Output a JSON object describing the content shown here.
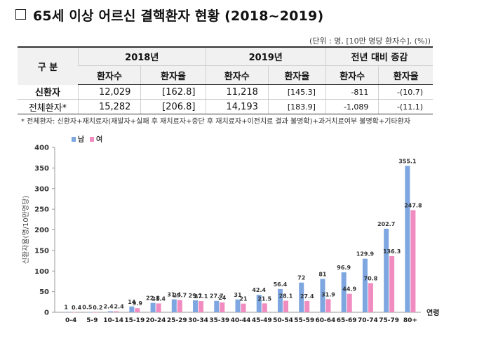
{
  "title": "65세 이상 어르신 결핵환자 현황 (2018~2019)",
  "unit_note": "(단위 : 명, [10만 명당 환자수], (%))",
  "table": {
    "header_group": "구 분",
    "years": [
      "2018년",
      "2019년",
      "전년 대비 증감"
    ],
    "subheaders": [
      "환자수",
      "환자율",
      "환자수",
      "환자율",
      "환자수",
      "환자율"
    ],
    "rows": [
      {
        "label": "신환자",
        "values": [
          "12,029",
          "[162.8]",
          "11,218",
          "[145.3]",
          "-811",
          "-(10.7)"
        ]
      },
      {
        "label": "전체환자*",
        "values": [
          "15,282",
          "[206.8]",
          "14,193",
          "[183.9]",
          "-1,089",
          "-(11.1)"
        ]
      }
    ]
  },
  "footnote": "* 전체환자: 신환자+재치료자(재발자+실패 후 재치료자+중단 후 재치료자+이전치료 결과 불명확)+과거치료여부 불명확+기타환자",
  "colors": {
    "male": "#7ea6e0",
    "female": "#f08cbf",
    "axis": "#9a9a9a",
    "header_bg": "#f1f1f1"
  },
  "chart_data": {
    "type": "bar",
    "categories": [
      "0-4",
      "5-9",
      "10-14",
      "15-19",
      "20-24",
      "25-29",
      "30-34",
      "35-39",
      "40-44",
      "45-49",
      "50-54",
      "55-59",
      "60-64",
      "65-69",
      "70-74",
      "75-79",
      "80+"
    ],
    "x_unit_label": "연령",
    "ylabel": "신환자율(명/10만명당)",
    "ylim": [
      0,
      400
    ],
    "yticks": [
      0,
      50,
      100,
      150,
      200,
      250,
      300,
      350,
      400
    ],
    "legend": "top-left",
    "series": [
      {
        "name": "남",
        "color": "#7ea6e0",
        "values": [
          1,
          0.5,
          2.4,
          14,
          22.8,
          31.4,
          29.1,
          27.7,
          31,
          42.4,
          56.4,
          72,
          81,
          96.9,
          129.9,
          202.7,
          355.1
        ]
      },
      {
        "name": "여",
        "color": "#f08cbf",
        "values": [
          0.4,
          0.2,
          2.4,
          9.9,
          21.4,
          29.7,
          27.1,
          24,
          21,
          21.5,
          28.1,
          27.4,
          31.9,
          44.9,
          70.8,
          136.3,
          247.8
        ]
      }
    ],
    "data_labels": [
      {
        "male": "1",
        "female": "0.4"
      },
      {
        "male": "0.5",
        "female": "0.2"
      },
      {
        "male": "2.4",
        "female": "2.4"
      },
      {
        "male": "14",
        "female": "9.9"
      },
      {
        "male": "22.8",
        "female": "21.4"
      },
      {
        "male": "31.4",
        "female": "29.7"
      },
      {
        "male": "29.1",
        "female": "27.1"
      },
      {
        "male": "27.7",
        "female": "24"
      },
      {
        "male": "31",
        "female": "21"
      },
      {
        "male": "42.4",
        "female": "21.5"
      },
      {
        "male": "56.4",
        "female": "28.1"
      },
      {
        "male": "72",
        "female": "27.4"
      },
      {
        "male": "81",
        "female": "31.9"
      },
      {
        "male": "96.9",
        "female": "44.9"
      },
      {
        "male": "129.9",
        "female": "70.8"
      },
      {
        "male": "202.7",
        "female": "136.3"
      },
      {
        "male": "355.1",
        "female": "247.8"
      }
    ]
  }
}
